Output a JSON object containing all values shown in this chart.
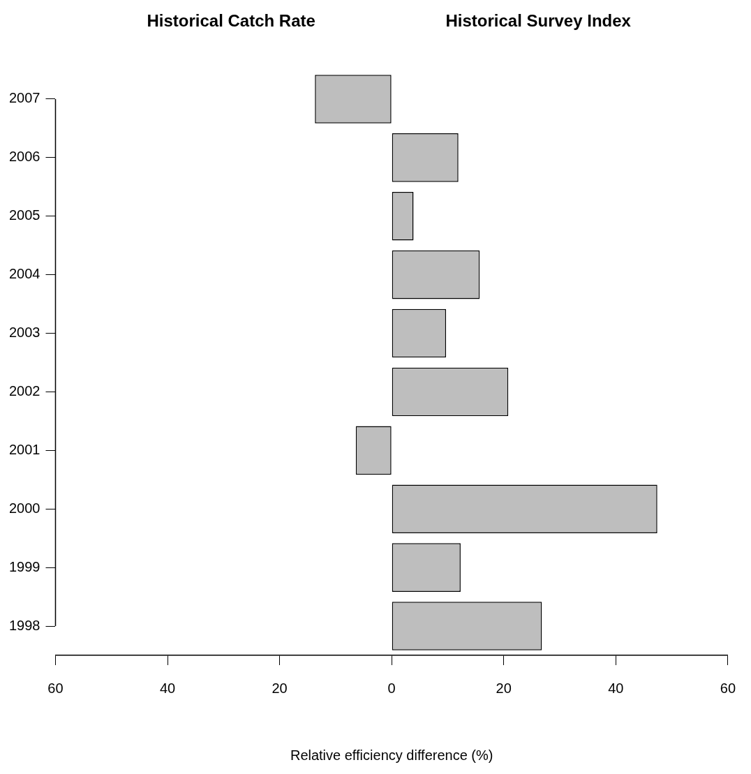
{
  "chart_data": {
    "type": "bar",
    "orientation": "horizontal",
    "annotations": [
      "Historical Catch Rate",
      "Historical Survey Index"
    ],
    "xlabel": "Relative efficiency difference (%)",
    "categories": [
      "2007",
      "2006",
      "2005",
      "2004",
      "2003",
      "2002",
      "2001",
      "2000",
      "1999",
      "1998"
    ],
    "values": [
      -13.7,
      11.9,
      3.9,
      15.7,
      9.7,
      20.8,
      -6.4,
      47.4,
      12.3,
      26.8
    ],
    "color": "#bebebe",
    "xlim": [
      -60,
      60
    ],
    "xticks": [
      {
        "value": -60,
        "label": "60"
      },
      {
        "value": -40,
        "label": "40"
      },
      {
        "value": -20,
        "label": "20"
      },
      0,
      20,
      40,
      60
    ],
    "grid": false,
    "legend": false
  }
}
